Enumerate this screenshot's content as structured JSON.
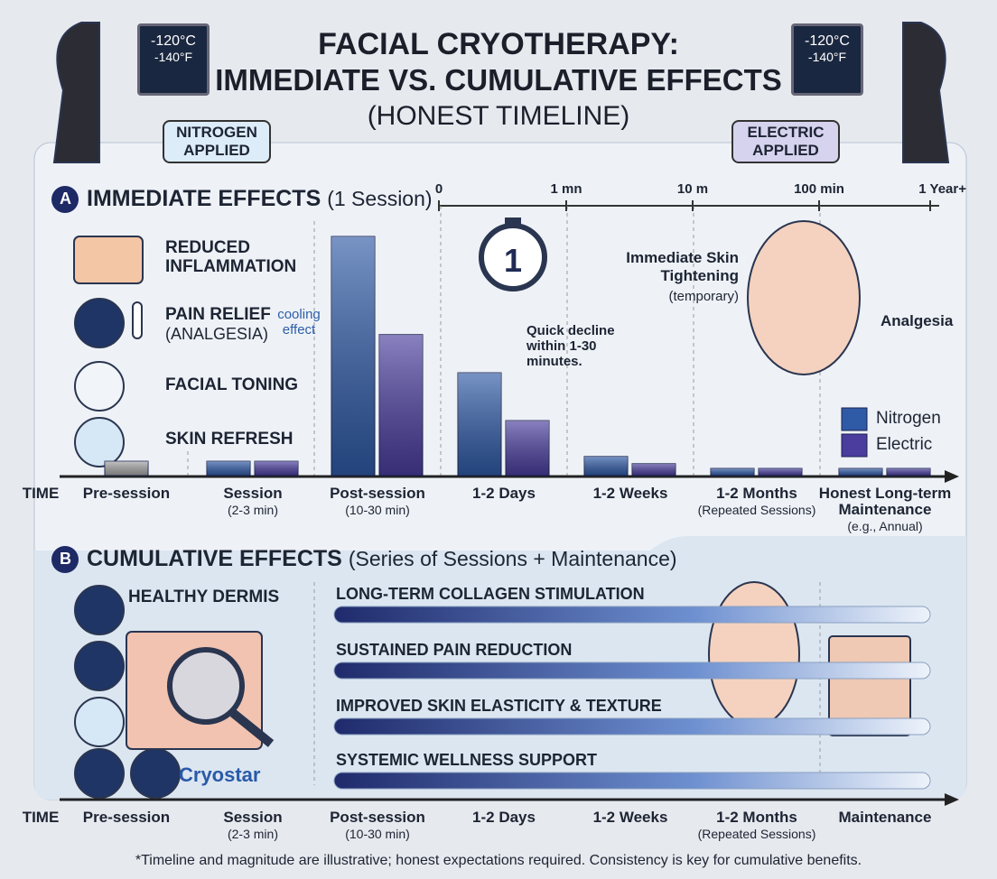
{
  "header": {
    "title_line1": "FACIAL CRYOTHERAPY:",
    "title_line2": "IMMEDIATE VS. CUMULATIVE EFFECTS",
    "subtitle": "(HONEST TIMELINE)"
  },
  "devices": [
    {
      "temp_c": "-120°C",
      "temp_f": "-140°F",
      "label": "NITROGEN APPLIED"
    },
    {
      "temp_c": "-120°C",
      "temp_f": "-140°F",
      "label": "ELECTRIC APPLIED"
    }
  ],
  "section_a": {
    "badge": "A",
    "title": "IMMEDIATE EFFECTS",
    "title_note": "(1 Session)",
    "time_scale": [
      "0",
      "1 mn",
      "10 m",
      "100 min",
      "1 Year+"
    ],
    "effects": [
      "REDUCED INFLAMMATION",
      "PAIN RELIEF",
      "FACIAL TONING",
      "SKIN REFRESH"
    ],
    "pain_note": "(ANALGESIA)",
    "cooling": "cooling effect",
    "timer": "1",
    "callout": "Quick decline within 1-30 minutes.",
    "face_tightening": "Immediate Skin Tightening",
    "face_tightening_note": "(temporary)",
    "face_analgesia": "Analgesia"
  },
  "chart_data": {
    "type": "bar",
    "time_label": "TIME",
    "categories": [
      "Pre-session",
      "Session",
      "Post-session",
      "1-2 Days",
      "1-2 Weeks",
      "1-2 Months",
      "Honest Long-term Maintenance"
    ],
    "category_notes": [
      null,
      "(2-3 min)",
      "(10-30 min)",
      null,
      null,
      "(Repeated Sessions)",
      "(e.g., Annual)"
    ],
    "series": [
      {
        "name": "Nitrogen",
        "color": "#2f5aa6",
        "values": [
          6,
          6,
          100,
          43,
          8,
          3,
          3
        ]
      },
      {
        "name": "Electric",
        "color": "#4a3d9e",
        "values": [
          null,
          6,
          59,
          23,
          5,
          3,
          3
        ]
      }
    ],
    "baseline_color": "#a3a3a3",
    "ylim": [
      0,
      100
    ],
    "legend": "right"
  },
  "section_b": {
    "badge": "B",
    "title": "CUMULATIVE EFFECTS",
    "title_note": "(Series of Sessions + Maintenance)",
    "side_label": "HEALTHY DERMIS",
    "brand": "Cryostar",
    "effects": [
      "LONG-TERM COLLAGEN STIMULATION",
      "SUSTAINED PAIN REDUCTION",
      "IMPROVED SKIN ELASTICITY & TEXTURE",
      "SYSTEMIC WELLNESS SUPPORT"
    ],
    "time_label": "TIME",
    "categories": [
      "Pre-session",
      "Session",
      "Post-session",
      "1-2 Days",
      "1-2 Weeks",
      "1-2 Months",
      "Maintenance"
    ],
    "category_notes": [
      null,
      "(2-3 min)",
      "(10-30 min)",
      null,
      null,
      "(Repeated Sessions)",
      null
    ]
  },
  "footnote": "*Timeline and magnitude are illustrative; honest expectations required. Consistency is key for cumulative benefits."
}
